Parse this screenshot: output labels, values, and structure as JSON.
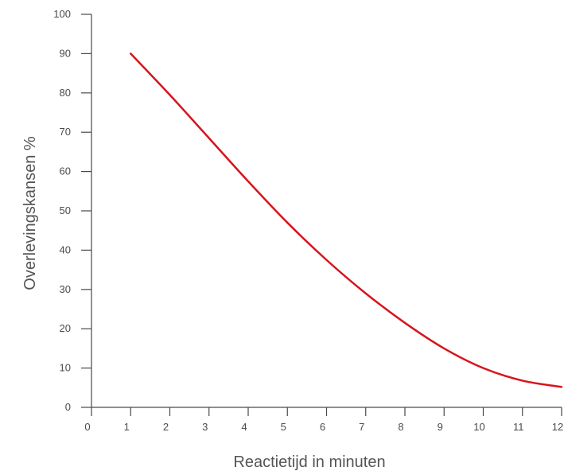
{
  "chart_data": {
    "type": "line",
    "title": "",
    "xlabel": "Reactietijd in minuten",
    "ylabel": "Overlevingskansen %",
    "xlim": [
      0,
      12
    ],
    "ylim": [
      0,
      100
    ],
    "x_ticks": [
      "0",
      "1",
      "2",
      "3",
      "4",
      "5",
      "6",
      "7",
      "8",
      "9",
      "10",
      "11",
      "12"
    ],
    "y_ticks": [
      "0",
      "10",
      "20",
      "30",
      "40",
      "50",
      "60",
      "70",
      "80",
      "90",
      "100"
    ],
    "grid": false,
    "legend": "none",
    "series": [
      {
        "color": "#d7141c",
        "x": [
          1,
          2,
          3,
          4,
          5,
          6,
          7,
          8,
          9,
          10,
          11,
          12
        ],
        "y": [
          90,
          79.5,
          68.5,
          57.5,
          47,
          37.5,
          29,
          21.5,
          15,
          10,
          6.8,
          5.2
        ]
      }
    ]
  }
}
